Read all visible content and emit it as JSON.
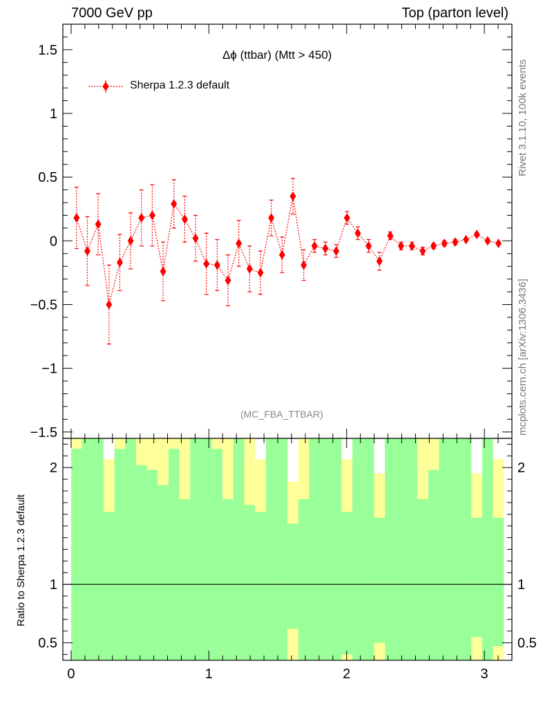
{
  "header": {
    "left": "7000 GeV pp",
    "right": "Top (parton level)"
  },
  "side_labels": {
    "rivet": "Rivet 3.1.10,  100k events",
    "mcplots": "mcplots.cern.ch [arXiv:1306.3436]"
  },
  "chart_data": [
    {
      "type": "line",
      "title": "Δϕ (ttbar) (Mtt > 450)",
      "annotation": "(MC_FBA_TTBAR)",
      "legend": {
        "position": "top-left",
        "entries": [
          "Sherpa 1.2.3 default"
        ]
      },
      "xlim": [
        -0.06,
        3.2
      ],
      "ylim": [
        -1.55,
        1.7
      ],
      "yticks": [
        1.5,
        1,
        0.5,
        0,
        -0.5,
        -1,
        -1.5
      ],
      "ytick_labels": [
        "1.5",
        "1",
        "0.5",
        "0",
        "−0.5",
        "−1",
        "−1.5"
      ],
      "color": "#ff0000",
      "series": [
        {
          "name": "Sherpa 1.2.3 default",
          "x": [
            0.0393,
            0.1178,
            0.1963,
            0.2749,
            0.3534,
            0.432,
            0.5105,
            0.589,
            0.6676,
            0.7461,
            0.8247,
            0.9032,
            0.9817,
            1.0603,
            1.1388,
            1.2174,
            1.2959,
            1.3744,
            1.453,
            1.5315,
            1.6101,
            1.6886,
            1.7671,
            1.8457,
            1.9242,
            2.0028,
            2.0813,
            2.1598,
            2.2384,
            2.3169,
            2.3955,
            2.474,
            2.5525,
            2.6311,
            2.7096,
            2.7882,
            2.8667,
            2.9452,
            3.0238,
            3.1023
          ],
          "y": [
            0.18,
            -0.08,
            0.13,
            -0.5,
            -0.17,
            0.0,
            0.18,
            0.2,
            -0.24,
            0.29,
            0.17,
            0.02,
            -0.18,
            -0.19,
            -0.31,
            -0.02,
            -0.22,
            -0.25,
            0.18,
            -0.11,
            0.35,
            -0.19,
            -0.04,
            -0.06,
            -0.08,
            0.18,
            0.06,
            -0.04,
            -0.16,
            0.04,
            -0.04,
            -0.04,
            -0.08,
            -0.04,
            -0.02,
            -0.01,
            0.01,
            0.05,
            0.0,
            -0.02
          ],
          "err": [
            0.24,
            0.27,
            0.24,
            0.31,
            0.22,
            0.22,
            0.22,
            0.24,
            0.23,
            0.19,
            0.18,
            0.18,
            0.24,
            0.2,
            0.2,
            0.18,
            0.18,
            0.17,
            0.14,
            0.14,
            0.14,
            0.12,
            0.05,
            0.05,
            0.05,
            0.05,
            0.05,
            0.05,
            0.07,
            0.03,
            0.03,
            0.03,
            0.03,
            0.02,
            0.02,
            0.02,
            0.01,
            0.01,
            0.01,
            0.01
          ]
        }
      ]
    },
    {
      "type": "bar",
      "ylabel": "Ratio to Sherpa 1.2.3 default",
      "xlim": [
        -0.06,
        3.2
      ],
      "ylim": [
        0.35,
        2.25
      ],
      "yticks": [
        0.5,
        1,
        2
      ],
      "ytick_labels": [
        "0.5",
        "1",
        "2"
      ],
      "xticks": [
        0,
        1,
        2,
        3
      ],
      "xtick_labels": [
        "0",
        "1",
        "2",
        "3"
      ],
      "reference_line": 1,
      "colors": {
        "band_1sigma": "#99ff99",
        "band_2sigma": "#ffff99"
      },
      "bins_x": [
        0.0393,
        0.1178,
        0.1963,
        0.2749,
        0.3534,
        0.432,
        0.5105,
        0.589,
        0.6676,
        0.7461,
        0.8247,
        0.9032,
        0.9817,
        1.0603,
        1.1388,
        1.2174,
        1.2959,
        1.3744,
        1.453,
        1.5315,
        1.6101,
        1.6886,
        1.7671,
        1.8457,
        1.9242,
        2.0028,
        2.0813,
        2.1598,
        2.2384,
        2.3169,
        2.3955,
        2.474,
        2.5525,
        2.6311,
        2.7096,
        2.7882,
        2.8667,
        2.9452,
        3.0238,
        3.1023
      ],
      "band_1sigma": {
        "lo": [
          0.35,
          0.35,
          0.35,
          0.35,
          0.35,
          0.35,
          0.35,
          0.35,
          0.35,
          0.35,
          0.35,
          0.35,
          0.35,
          0.35,
          0.35,
          0.35,
          0.35,
          0.35,
          0.35,
          0.35,
          0.62,
          0.35,
          0.35,
          0.35,
          0.35,
          0.4,
          0.35,
          0.35,
          0.5,
          0.35,
          0.35,
          0.35,
          0.35,
          0.35,
          0.35,
          0.35,
          0.35,
          0.55,
          0.35,
          0.47
        ],
        "hi": [
          2.16,
          2.25,
          2.25,
          1.62,
          2.16,
          2.25,
          2.02,
          1.98,
          1.85,
          2.16,
          1.73,
          2.25,
          2.25,
          2.16,
          1.73,
          2.25,
          1.68,
          1.62,
          2.25,
          2.25,
          1.52,
          1.73,
          2.25,
          2.25,
          2.25,
          1.62,
          2.25,
          2.25,
          1.57,
          2.25,
          2.25,
          2.25,
          1.73,
          1.98,
          2.25,
          2.25,
          2.25,
          1.57,
          2.25,
          1.57
        ]
      },
      "band_2sigma": {
        "lo": [
          0.35,
          0.35,
          0.35,
          0.35,
          0.35,
          0.35,
          0.35,
          0.35,
          0.35,
          0.35,
          0.35,
          0.35,
          0.35,
          0.35,
          0.35,
          0.35,
          0.35,
          0.37,
          0.35,
          0.35,
          0.35,
          0.35,
          0.35,
          0.35,
          0.35,
          0.35,
          0.35,
          0.35,
          0.35,
          0.35,
          0.35,
          0.35,
          0.35,
          0.35,
          0.35,
          0.35,
          0.35,
          0.35,
          0.35,
          0.35
        ],
        "hi": [
          2.25,
          2.25,
          2.25,
          2.07,
          2.25,
          2.25,
          2.25,
          2.25,
          2.25,
          2.25,
          2.25,
          2.25,
          2.25,
          2.25,
          2.25,
          2.25,
          2.25,
          2.07,
          2.25,
          2.25,
          1.88,
          2.25,
          2.25,
          2.25,
          2.25,
          2.07,
          2.25,
          2.25,
          1.95,
          2.25,
          2.25,
          2.25,
          2.25,
          2.25,
          2.25,
          2.25,
          2.25,
          1.95,
          2.25,
          2.07
        ]
      }
    }
  ]
}
